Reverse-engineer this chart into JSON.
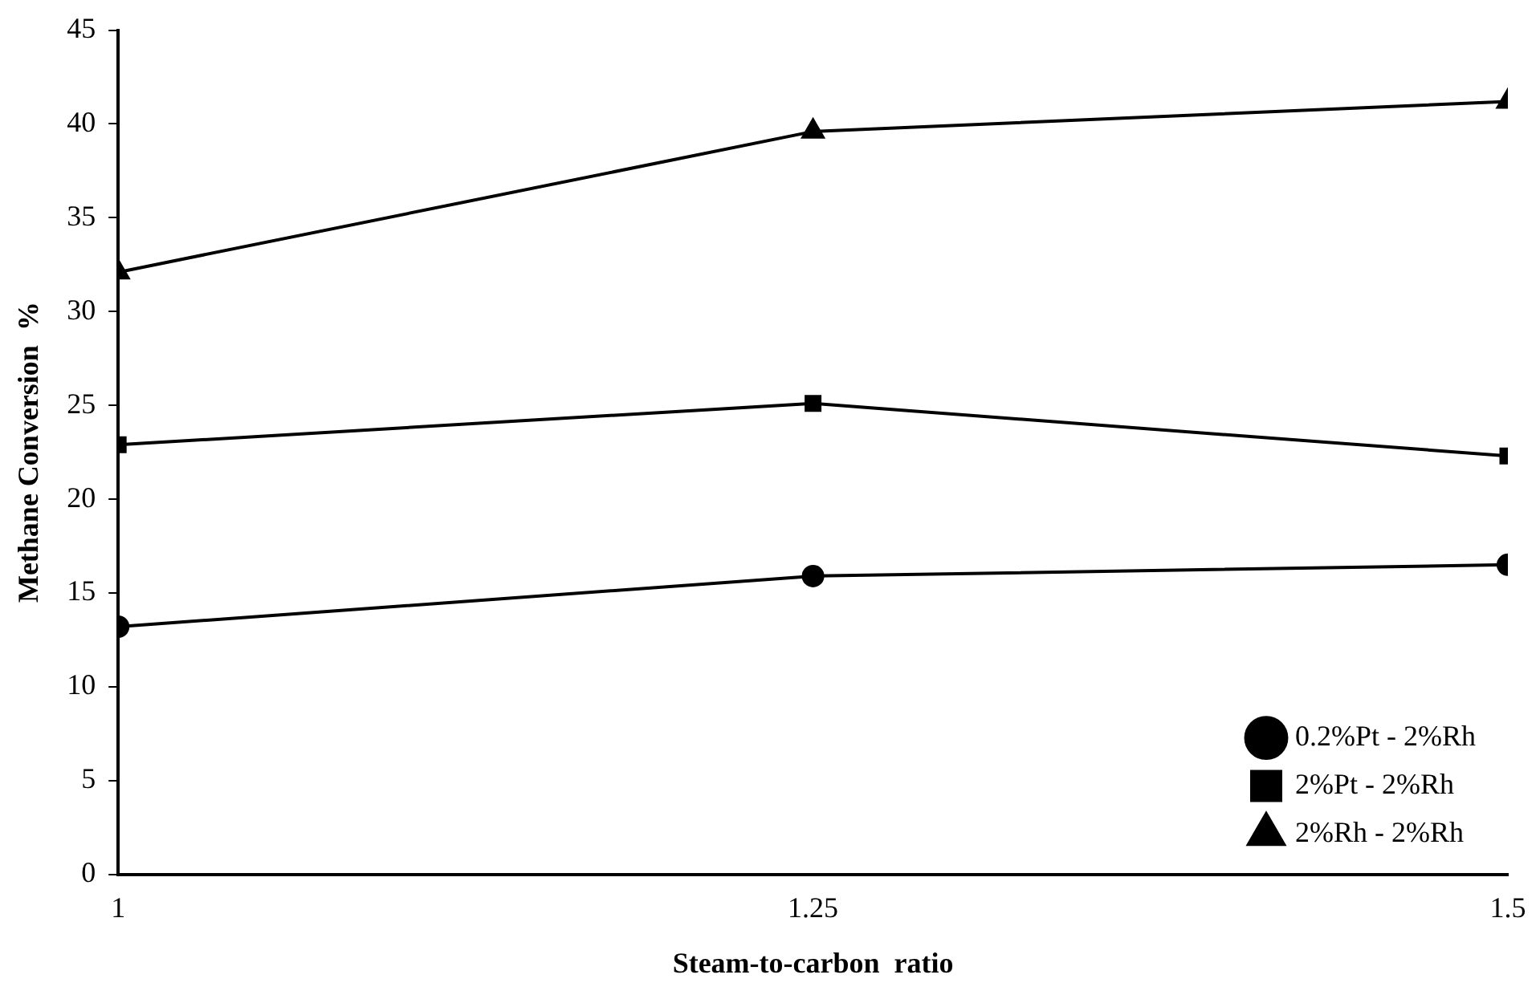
{
  "chart_data": {
    "type": "line",
    "xlabel": "Steam-to-carbon  ratio",
    "ylabel": "Methane Conversion  %",
    "x": [
      1,
      1.25,
      1.5
    ],
    "xlim": [
      1,
      1.5
    ],
    "xticks": [
      1,
      1.25,
      1.5
    ],
    "ylim": [
      0,
      45
    ],
    "yticks": [
      0,
      5,
      10,
      15,
      20,
      25,
      30,
      35,
      40,
      45
    ],
    "grid": false,
    "legend": "bottom right",
    "line_style": "solid",
    "series": [
      {
        "name": "0.2%Pt - 2%Rh",
        "color": "#000000",
        "marker": "circle",
        "values": [
          13.2,
          15.9,
          16.5
        ]
      },
      {
        "name": "2%Pt - 2%Rh",
        "color": "#000000",
        "marker": "square",
        "values": [
          22.9,
          25.1,
          22.3
        ]
      },
      {
        "name": "2%Rh - 2%Rh",
        "color": "#000000",
        "marker": "triangle",
        "values": [
          32.1,
          39.6,
          41.2
        ]
      }
    ]
  }
}
